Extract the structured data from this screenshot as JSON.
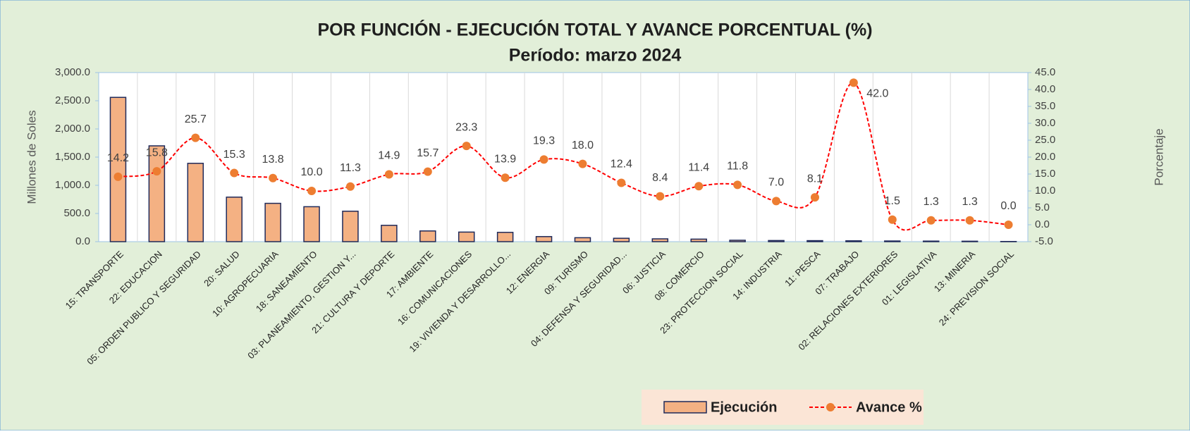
{
  "chart_data": {
    "type": "bar_line",
    "title": "POR FUNCIÓN - EJECUCIÓN TOTAL Y AVANCE PORCENTUAL (%)",
    "subtitle": "Período:  marzo  2024",
    "y_label": "Millones de Soles",
    "y2_label": "Porcentaje",
    "categories": [
      "15: TRANSPORTE",
      "22: EDUCACION",
      "05: ORDEN PUBLICO Y SEGURIDAD",
      "20: SALUD",
      "10: AGROPECUARIA",
      "18: SANEAMIENTO",
      "03: PLANEAMIENTO, GESTION Y...",
      "21: CULTURA Y DEPORTE",
      "17: AMBIENTE",
      "16: COMUNICACIONES",
      "19: VIVIENDA Y DESARROLLO...",
      "12: ENERGIA",
      "09: TURISMO",
      "04: DEFENSA Y SEGURIDAD...",
      "06: JUSTICIA",
      "08: COMERCIO",
      "23: PROTECCION SOCIAL",
      "14: INDUSTRIA",
      "11: PESCA",
      "07: TRABAJO",
      "02: RELACIONES EXTERIORES",
      "01: LEGISLATIVA",
      "13: MINERIA",
      "24: PREVISION SOCIAL"
    ],
    "series": [
      {
        "name": "Ejecución",
        "type": "bar",
        "color": "#f4b183",
        "edge": "#1f2a5a",
        "values": [
          2560,
          1700,
          1390,
          790,
          680,
          620,
          540,
          290,
          190,
          170,
          165,
          90,
          70,
          60,
          50,
          45,
          25,
          20,
          18,
          15,
          12,
          10,
          8,
          3
        ]
      },
      {
        "name": "Avance %",
        "type": "line",
        "axis": "y2",
        "color": "#ff0000",
        "marker_color": "#ed7d31",
        "values": [
          14.2,
          15.8,
          25.7,
          15.3,
          13.8,
          10.0,
          11.3,
          14.9,
          15.7,
          23.3,
          13.9,
          19.3,
          18.0,
          12.4,
          8.4,
          11.4,
          11.8,
          7.0,
          8.1,
          42.0,
          1.5,
          1.3,
          1.3,
          0.0
        ],
        "value_labels": [
          "14.2",
          "15.8",
          "25.7",
          "15.3",
          "13.8",
          "10.0",
          "11.3",
          "14.9",
          "15.7",
          "23.3",
          "13.9",
          "19.3",
          "18.0",
          "12.4",
          "8.4",
          "11.4",
          "11.8",
          "7.0",
          "8.1",
          "42.0",
          "1.5",
          "1.3",
          "1.3",
          "0.0"
        ]
      }
    ],
    "ylim": [
      0,
      3000
    ],
    "yticks": [
      {
        "value": 0,
        "label": "0.0"
      },
      {
        "value": 500,
        "label": "500.0"
      },
      {
        "value": 1000,
        "label": "1,000.0"
      },
      {
        "value": 1500,
        "label": "1,500.0"
      },
      {
        "value": 2000,
        "label": "2,000.0"
      },
      {
        "value": 2500,
        "label": "2,500.0"
      },
      {
        "value": 3000,
        "label": "3,000.0"
      }
    ],
    "y2lim": [
      -5,
      45
    ],
    "y2ticks": [
      {
        "value": -5,
        "label": "-5.0"
      },
      {
        "value": 0,
        "label": "0.0"
      },
      {
        "value": 5,
        "label": "5.0"
      },
      {
        "value": 10,
        "label": "10.0"
      },
      {
        "value": 15,
        "label": "15.0"
      },
      {
        "value": 20,
        "label": "20.0"
      },
      {
        "value": 25,
        "label": "25.0"
      },
      {
        "value": 30,
        "label": "30.0"
      },
      {
        "value": 35,
        "label": "35.0"
      },
      {
        "value": 40,
        "label": "40.0"
      },
      {
        "value": 45,
        "label": "45.0"
      }
    ],
    "legend": "bottom"
  }
}
